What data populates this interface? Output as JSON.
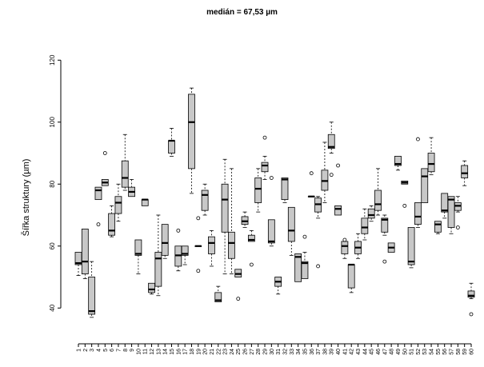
{
  "chart_data": {
    "type": "boxplot",
    "title": "medián = 67,53 µm",
    "ylabel": "Šířka struktury (µm)",
    "xlabel": "",
    "ylim": [
      30,
      126
    ],
    "yticks": [
      40,
      60,
      80,
      100,
      120
    ],
    "grid": false,
    "categories": [
      "1",
      "2",
      "3",
      "4",
      "5",
      "6",
      "7",
      "8",
      "9",
      "10",
      "11",
      "12",
      "13",
      "14",
      "15",
      "16",
      "17",
      "18",
      "19",
      "20",
      "21",
      "22",
      "23",
      "24",
      "25",
      "26",
      "27",
      "28",
      "29",
      "30",
      "31",
      "32",
      "33",
      "34",
      "35",
      "36",
      "37",
      "38",
      "39",
      "40",
      "41",
      "42",
      "43",
      "44",
      "45",
      "46",
      "47",
      "48",
      "49",
      "50",
      "51",
      "52",
      "53",
      "54",
      "55",
      "56",
      "57",
      "58",
      "59",
      "60"
    ],
    "boxes": [
      {
        "min": 50.5,
        "q1": 54,
        "median": 54.5,
        "q3": 58,
        "max": 58,
        "outliers": []
      },
      {
        "min": 49.5,
        "q1": 51,
        "median": 55,
        "q3": 65.5,
        "max": 65.5,
        "outliers": []
      },
      {
        "min": 37,
        "q1": 38,
        "median": 39,
        "q3": 50,
        "max": 55,
        "outliers": []
      },
      {
        "min": 75,
        "q1": 75,
        "median": 78,
        "q3": 79,
        "max": 79,
        "outliers": [
          67
        ]
      },
      {
        "min": 79.5,
        "q1": 79.5,
        "median": 80.5,
        "q3": 81.5,
        "max": 81.5,
        "outliers": [
          90
        ]
      },
      {
        "min": 63,
        "q1": 63.5,
        "median": 65,
        "q3": 70.5,
        "max": 73,
        "outliers": []
      },
      {
        "min": 68,
        "q1": 70.5,
        "median": 74,
        "q3": 76,
        "max": 80,
        "outliers": []
      },
      {
        "min": 78,
        "q1": 79,
        "median": 82,
        "q3": 87.5,
        "max": 96,
        "outliers": []
      },
      {
        "min": 76,
        "q1": 76,
        "median": 77.5,
        "q3": 79,
        "max": 81.5,
        "outliers": []
      },
      {
        "min": 51,
        "q1": 57,
        "median": 57.5,
        "q3": 62,
        "max": 62,
        "outliers": []
      },
      {
        "min": 73,
        "q1": 73,
        "median": 75,
        "q3": 75,
        "max": 75,
        "outliers": []
      },
      {
        "min": 44.5,
        "q1": 45,
        "median": 46,
        "q3": 48,
        "max": 48,
        "outliers": []
      },
      {
        "min": 44,
        "q1": 47,
        "median": 56,
        "q3": 58,
        "max": 70,
        "outliers": []
      },
      {
        "min": 56,
        "q1": 57,
        "median": 61,
        "q3": 67,
        "max": 67,
        "outliers": []
      },
      {
        "min": 89,
        "q1": 90,
        "median": 94,
        "q3": 94,
        "max": 98,
        "outliers": []
      },
      {
        "min": 52,
        "q1": 53.5,
        "median": 57,
        "q3": 60,
        "max": 60,
        "outliers": [
          65
        ]
      },
      {
        "min": 54,
        "q1": 57,
        "median": 57.5,
        "q3": 60,
        "max": 60,
        "outliers": []
      },
      {
        "min": 77,
        "q1": 85,
        "median": 100,
        "q3": 109,
        "max": 111,
        "outliers": []
      },
      {
        "min": 60,
        "q1": 60,
        "median": 60,
        "q3": 60,
        "max": 60,
        "outliers": [
          52,
          69
        ]
      },
      {
        "min": 70,
        "q1": 71.5,
        "median": 76.5,
        "q3": 78,
        "max": 80,
        "outliers": []
      },
      {
        "min": 53.5,
        "q1": 57.5,
        "median": 61,
        "q3": 63,
        "max": 65,
        "outliers": []
      },
      {
        "min": 42,
        "q1": 42,
        "median": 42.5,
        "q3": 45,
        "max": 47,
        "outliers": []
      },
      {
        "min": 51,
        "q1": 64.5,
        "median": 75,
        "q3": 80,
        "max": 88,
        "outliers": []
      },
      {
        "min": 51,
        "q1": 56,
        "median": 61,
        "q3": 64.5,
        "max": 85,
        "outliers": []
      },
      {
        "min": 50,
        "q1": 50,
        "median": 51,
        "q3": 52.5,
        "max": 52.5,
        "outliers": [
          43
        ]
      },
      {
        "min": 66,
        "q1": 67,
        "median": 68,
        "q3": 69.5,
        "max": 71,
        "outliers": []
      },
      {
        "min": 61.5,
        "q1": 61.5,
        "median": 62,
        "q3": 63.5,
        "max": 65,
        "outliers": [
          54
        ]
      },
      {
        "min": 71,
        "q1": 74,
        "median": 78.5,
        "q3": 82,
        "max": 85,
        "outliers": []
      },
      {
        "min": 81.5,
        "q1": 84,
        "median": 86,
        "q3": 87,
        "max": 89,
        "outliers": [
          95
        ]
      },
      {
        "min": 60,
        "q1": 61,
        "median": 61.5,
        "q3": 68.5,
        "max": 68.5,
        "outliers": [
          82
        ]
      },
      {
        "min": 44.5,
        "q1": 47,
        "median": 48.5,
        "q3": 50,
        "max": 50,
        "outliers": []
      },
      {
        "min": 74,
        "q1": 75,
        "median": 81.5,
        "q3": 82,
        "max": 82,
        "outliers": []
      },
      {
        "min": 57,
        "q1": 61.5,
        "median": 65,
        "q3": 72.5,
        "max": 72.5,
        "outliers": []
      },
      {
        "min": 48.5,
        "q1": 48.5,
        "median": 56.5,
        "q3": 57.5,
        "max": 57.5,
        "outliers": []
      },
      {
        "min": 49.5,
        "q1": 49.5,
        "median": 54.5,
        "q3": 55,
        "max": 58,
        "outliers": [
          63
        ]
      },
      {
        "min": 76,
        "q1": 76,
        "median": 76,
        "q3": 76,
        "max": 76,
        "outliers": [
          83.5
        ]
      },
      {
        "min": 69,
        "q1": 71,
        "median": 73.5,
        "q3": 75.5,
        "max": 76,
        "outliers": [
          53.5
        ]
      },
      {
        "min": 74,
        "q1": 78,
        "median": 81,
        "q3": 84.5,
        "max": 93.5,
        "outliers": []
      },
      {
        "min": 90,
        "q1": 91.5,
        "median": 92,
        "q3": 96,
        "max": 100,
        "outliers": [
          83
        ]
      },
      {
        "min": 70,
        "q1": 70,
        "median": 72,
        "q3": 73,
        "max": 73,
        "outliers": [
          86
        ]
      },
      {
        "min": 56,
        "q1": 57.5,
        "median": 60,
        "q3": 61.5,
        "max": 61.5,
        "outliers": [
          62
        ]
      },
      {
        "min": 45,
        "q1": 46.5,
        "median": 54,
        "q3": 54,
        "max": 54,
        "outliers": []
      },
      {
        "min": 56,
        "q1": 57.5,
        "median": 59.5,
        "q3": 61.5,
        "max": 64,
        "outliers": []
      },
      {
        "min": 62,
        "q1": 64,
        "median": 66,
        "q3": 69,
        "max": 72,
        "outliers": []
      },
      {
        "min": 68,
        "q1": 69,
        "median": 70,
        "q3": 72,
        "max": 73,
        "outliers": []
      },
      {
        "min": 70,
        "q1": 71.5,
        "median": 73.5,
        "q3": 78,
        "max": 85,
        "outliers": []
      },
      {
        "min": 63.5,
        "q1": 64.5,
        "median": 68.5,
        "q3": 69,
        "max": 70,
        "outliers": [
          55
        ]
      },
      {
        "min": 58,
        "q1": 58,
        "median": 59.5,
        "q3": 61,
        "max": 61,
        "outliers": []
      },
      {
        "min": 84.5,
        "q1": 86,
        "median": 86.5,
        "q3": 89,
        "max": 89,
        "outliers": []
      },
      {
        "min": 80,
        "q1": 80,
        "median": 80.5,
        "q3": 81,
        "max": 81,
        "outliers": [
          73
        ]
      },
      {
        "min": 53,
        "q1": 54,
        "median": 55,
        "q3": 66,
        "max": 66,
        "outliers": []
      },
      {
        "min": 66,
        "q1": 67,
        "median": 69.5,
        "q3": 74,
        "max": 74,
        "outliers": [
          94.5
        ]
      },
      {
        "min": 74,
        "q1": 74,
        "median": 82.5,
        "q3": 85,
        "max": 85,
        "outliers": []
      },
      {
        "min": 83,
        "q1": 84,
        "median": 86.5,
        "q3": 90,
        "max": 95,
        "outliers": []
      },
      {
        "min": 64,
        "q1": 64.5,
        "median": 67,
        "q3": 68,
        "max": 68,
        "outliers": []
      },
      {
        "min": 69,
        "q1": 71,
        "median": 71.5,
        "q3": 77,
        "max": 77,
        "outliers": []
      },
      {
        "min": 64,
        "q1": 66,
        "median": 75,
        "q3": 76,
        "max": 76,
        "outliers": []
      },
      {
        "min": 71,
        "q1": 71.5,
        "median": 73,
        "q3": 74,
        "max": 76,
        "outliers": [
          66
        ]
      },
      {
        "min": 79.5,
        "q1": 82,
        "median": 83.5,
        "q3": 86,
        "max": 87.5,
        "outliers": []
      },
      {
        "min": 43,
        "q1": 43.5,
        "median": 44,
        "q3": 45.5,
        "max": 48,
        "outliers": [
          38
        ]
      }
    ]
  }
}
